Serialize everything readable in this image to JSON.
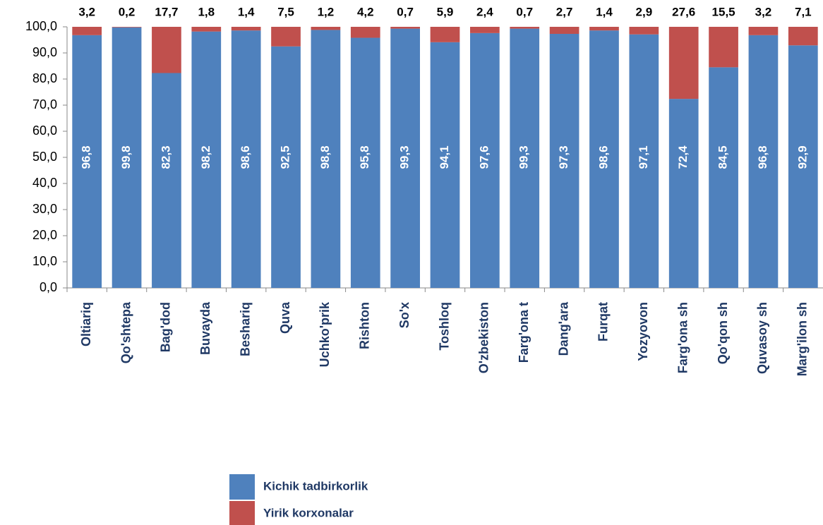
{
  "chart_data": {
    "type": "stacked_bar",
    "categories": [
      "Oltiariq",
      "Qo'shtepa",
      "Bag'dod",
      "Buvayda",
      "Beshariq",
      "Quva",
      "Uchko'prik",
      "Rishton",
      "So'x",
      "Toshloq",
      "O'zbekiston",
      "Farg'ona t",
      "Dang'ara",
      "Furqat",
      "Yozyovon",
      "Farg'ona sh",
      "Qo'qon sh",
      "Quvasoy sh",
      "Marg'ilon sh"
    ],
    "series": [
      {
        "name": "Kichik tadbirkorlik",
        "color": "#4f81bd",
        "values": [
          96.8,
          99.8,
          82.3,
          98.2,
          98.6,
          92.5,
          98.8,
          95.8,
          99.3,
          94.1,
          97.6,
          99.3,
          97.3,
          98.6,
          97.1,
          72.4,
          84.5,
          96.8,
          92.9
        ],
        "value_labels": [
          "96,8",
          "99,8",
          "82,3",
          "98,2",
          "98,6",
          "92,5",
          "98,8",
          "95,8",
          "99,3",
          "94,1",
          "97,6",
          "99,3",
          "97,3",
          "98,6",
          "97,1",
          "72,4",
          "84,5",
          "96,8",
          "92,9"
        ]
      },
      {
        "name": "Yirik korxonalar",
        "color": "#c0504d",
        "values": [
          3.2,
          0.2,
          17.7,
          1.8,
          1.4,
          7.5,
          1.2,
          4.2,
          0.7,
          5.9,
          2.4,
          0.7,
          2.7,
          1.4,
          2.9,
          27.6,
          15.5,
          3.2,
          7.1
        ],
        "value_labels": [
          "3,2",
          "0,2",
          "17,7",
          "1,8",
          "1,4",
          "7,5",
          "1,2",
          "4,2",
          "0,7",
          "5,9",
          "2,4",
          "0,7",
          "2,7",
          "1,4",
          "2,9",
          "27,6",
          "15,5",
          "3,2",
          "7,1"
        ]
      }
    ],
    "ylim": [
      0,
      100
    ],
    "yticks": [
      {
        "value": 0,
        "label": "0,0"
      },
      {
        "value": 10,
        "label": "10,0"
      },
      {
        "value": 20,
        "label": "20,0"
      },
      {
        "value": 30,
        "label": "30,0"
      },
      {
        "value": 40,
        "label": "40,0"
      },
      {
        "value": 50,
        "label": "50,0"
      },
      {
        "value": 60,
        "label": "60,0"
      },
      {
        "value": 70,
        "label": "70,0"
      },
      {
        "value": 80,
        "label": "80,0"
      },
      {
        "value": 90,
        "label": "90,0"
      },
      {
        "value": 100,
        "label": "100,0"
      }
    ]
  }
}
